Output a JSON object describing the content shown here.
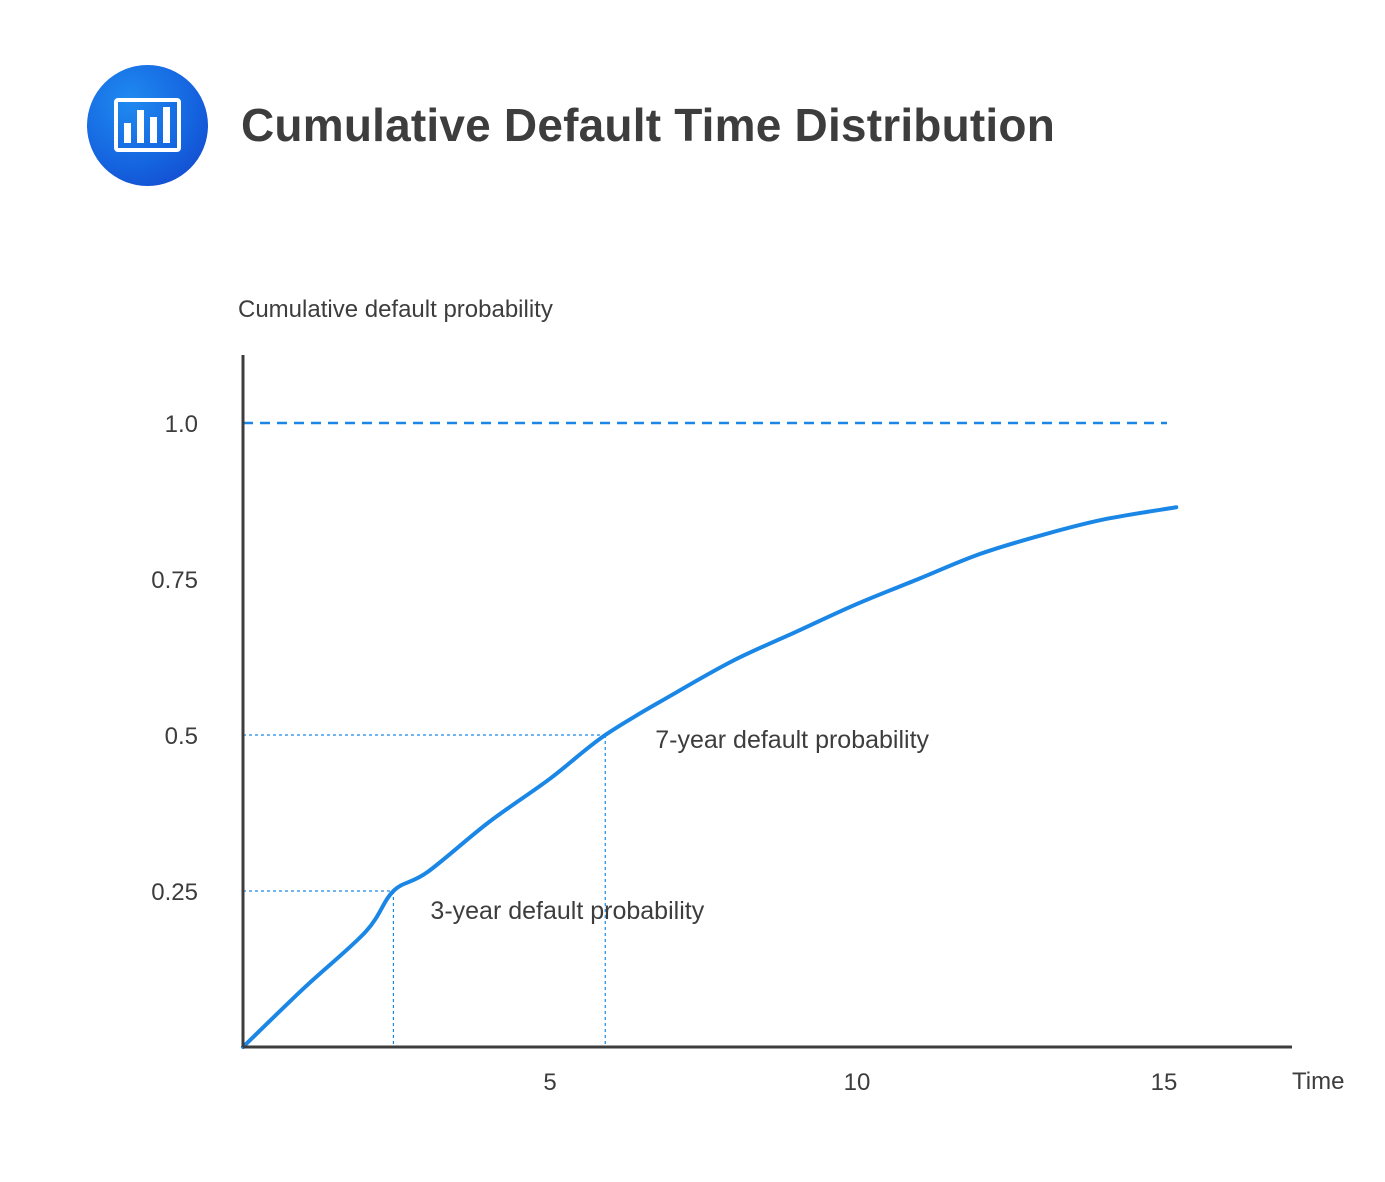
{
  "header": {
    "title": "Cumulative Default Time Distribution",
    "icon": "bar-chart-icon",
    "icon_color": "#1565e0"
  },
  "chart_data": {
    "type": "line",
    "title": "Cumulative Default Time Distribution",
    "xlabel": "Time",
    "ylabel": "Cumulative default probability",
    "xlim": [
      0,
      17
    ],
    "ylim": [
      0,
      1.1
    ],
    "x_ticks": [
      5,
      10,
      15
    ],
    "y_ticks": [
      0.25,
      0.5,
      0.75,
      1.0
    ],
    "y_tick_labels": [
      "0.25",
      "0.5",
      "0.75",
      "1.0"
    ],
    "grid": false,
    "legend": "none",
    "curve_color": "#1a87e6",
    "axis_color": "#3d3d3d",
    "series": [
      {
        "x": [
          0,
          1,
          2,
          2.45,
          3,
          4,
          5,
          5.9,
          7,
          8,
          9,
          10,
          11,
          12,
          13,
          14,
          15.2
        ],
        "values": [
          0,
          0.095,
          0.185,
          0.25,
          0.28,
          0.36,
          0.43,
          0.5,
          0.565,
          0.62,
          0.665,
          0.71,
          0.75,
          0.79,
          0.82,
          0.845,
          0.865
        ]
      }
    ],
    "reference_lines": [
      {
        "type": "horizontal",
        "y": 1.0,
        "style": "dashed"
      }
    ],
    "annotations": [
      {
        "text": "3-year default probability",
        "x": 2.45,
        "y": 0.25
      },
      {
        "text": "7-year default probability",
        "x": 5.9,
        "y": 0.5
      }
    ]
  }
}
